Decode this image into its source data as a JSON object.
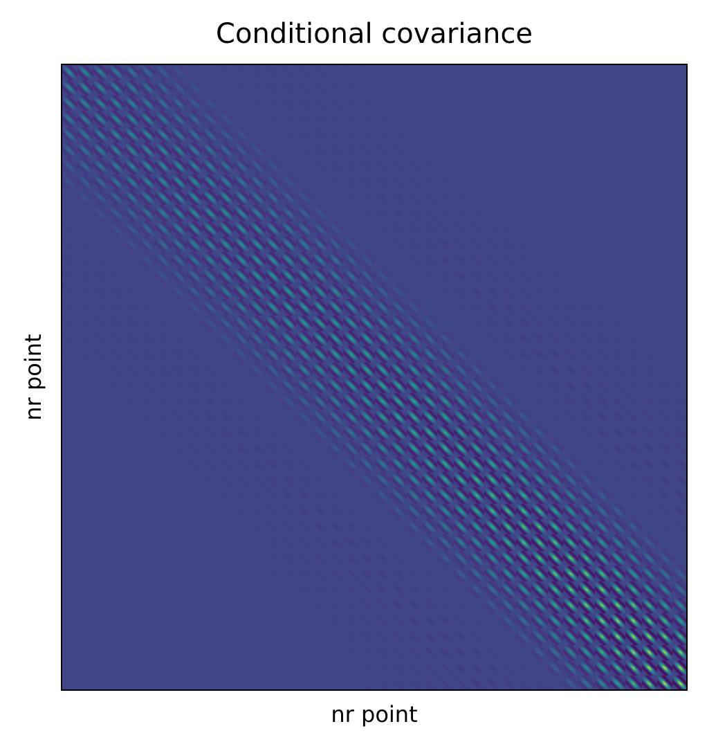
{
  "chart_data": {
    "type": "heatmap",
    "title": "Conditional covariance",
    "xlabel": "nr point",
    "ylabel": "nr point",
    "colormap": "viridis",
    "ticks": "none",
    "grid": false,
    "legend": "none",
    "colors": {
      "low": "#440154",
      "background": "#46407e",
      "mid": "#21918c",
      "high": "#fde725"
    }
  }
}
